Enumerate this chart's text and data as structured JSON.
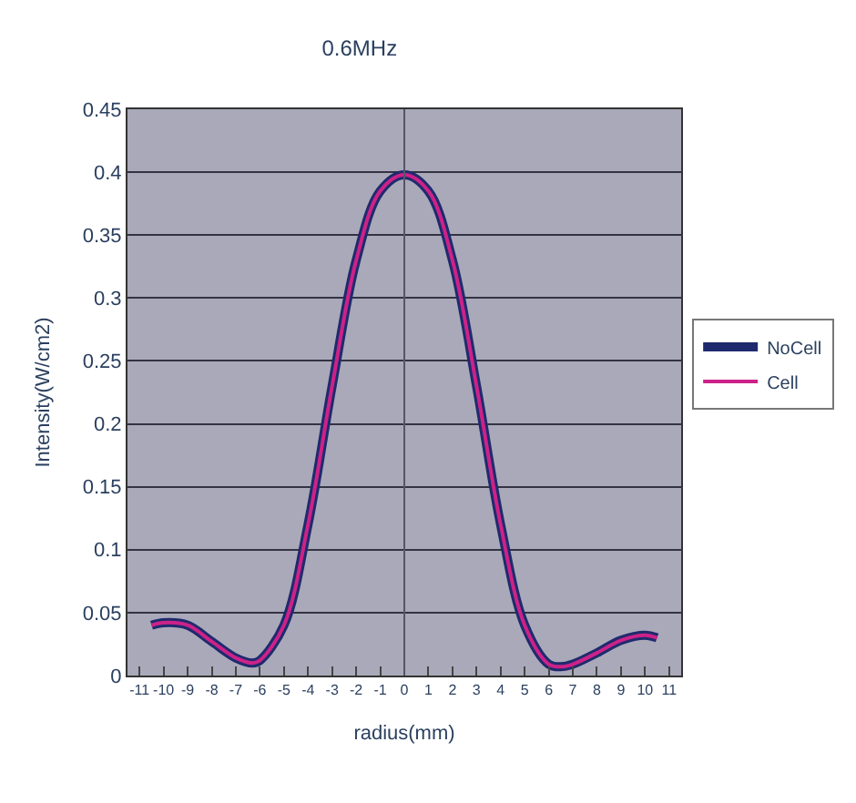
{
  "chart_data": {
    "type": "line",
    "title": "0.6MHz",
    "xlabel": "radius(mm)",
    "ylabel": "Intensity(W/cm2)",
    "x": [
      -10.5,
      -10,
      -9,
      -8,
      -7,
      -6.3,
      -6,
      -5,
      -4,
      -3,
      -2,
      -1,
      0,
      1,
      2,
      3,
      4,
      5,
      6,
      6.5,
      7,
      8,
      9,
      10,
      10.5
    ],
    "series": [
      {
        "name": "NoCell",
        "color": "#1f2a6e",
        "values": [
          0.04,
          0.042,
          0.04,
          0.027,
          0.014,
          0.01,
          0.012,
          0.04,
          0.12,
          0.23,
          0.33,
          0.385,
          0.398,
          0.385,
          0.33,
          0.23,
          0.12,
          0.04,
          0.009,
          0.007,
          0.009,
          0.018,
          0.028,
          0.032,
          0.03
        ]
      },
      {
        "name": "Cell",
        "color": "#cc2288",
        "values": [
          0.04,
          0.042,
          0.04,
          0.027,
          0.014,
          0.01,
          0.012,
          0.04,
          0.12,
          0.23,
          0.33,
          0.385,
          0.398,
          0.385,
          0.33,
          0.23,
          0.12,
          0.04,
          0.009,
          0.007,
          0.009,
          0.018,
          0.028,
          0.032,
          0.03
        ]
      }
    ],
    "xlim": [
      -11.5,
      11.5
    ],
    "xticks": [
      -11,
      -10,
      -9,
      -8,
      -7,
      -6,
      -5,
      -4,
      -3,
      -2,
      -1,
      0,
      1,
      2,
      3,
      4,
      5,
      6,
      7,
      8,
      9,
      10,
      11
    ],
    "ylim": [
      0,
      0.45
    ],
    "yticks": [
      0,
      0.05,
      0.1,
      0.15,
      0.2,
      0.25,
      0.3,
      0.35,
      0.4,
      0.45
    ],
    "ref_lines": [
      {
        "axis": "x",
        "value": 0,
        "color": "#555566"
      }
    ],
    "grid": "y",
    "legend": "right",
    "marker": "none",
    "line_style": "solid"
  }
}
